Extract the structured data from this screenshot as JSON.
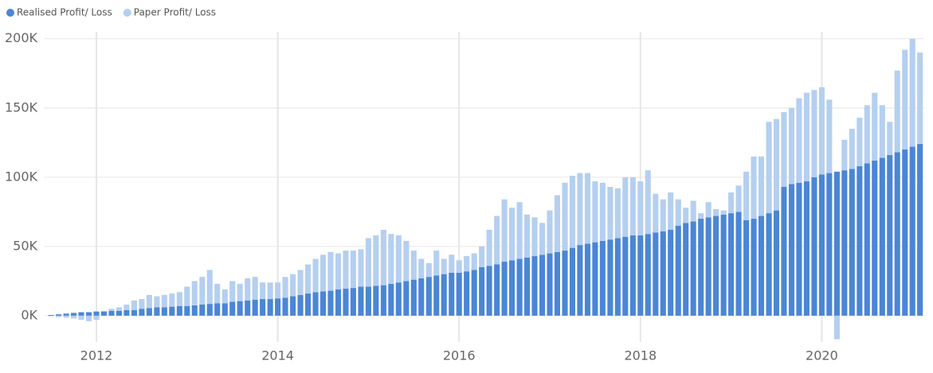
{
  "chart_data": {
    "type": "stacked_bar",
    "x": [
      2011.5,
      2011.583,
      2011.667,
      2011.75,
      2011.833,
      2011.917,
      2012,
      2012.083,
      2012.167,
      2012.25,
      2012.333,
      2012.417,
      2012.5,
      2012.583,
      2012.667,
      2012.75,
      2012.833,
      2012.917,
      2013,
      2013.083,
      2013.167,
      2013.25,
      2013.333,
      2013.417,
      2013.5,
      2013.583,
      2013.667,
      2013.75,
      2013.833,
      2013.917,
      2014,
      2014.083,
      2014.167,
      2014.25,
      2014.333,
      2014.417,
      2014.5,
      2014.583,
      2014.667,
      2014.75,
      2014.833,
      2014.917,
      2015,
      2015.083,
      2015.167,
      2015.25,
      2015.333,
      2015.417,
      2015.5,
      2015.583,
      2015.667,
      2015.75,
      2015.833,
      2015.917,
      2016,
      2016.083,
      2016.167,
      2016.25,
      2016.333,
      2016.417,
      2016.5,
      2016.583,
      2016.667,
      2016.75,
      2016.833,
      2016.917,
      2017,
      2017.083,
      2017.167,
      2017.25,
      2017.333,
      2017.417,
      2017.5,
      2017.583,
      2017.667,
      2017.75,
      2017.833,
      2017.917,
      2018,
      2018.083,
      2018.167,
      2018.25,
      2018.333,
      2018.417,
      2018.5,
      2018.583,
      2018.667,
      2018.75,
      2018.833,
      2018.917,
      2019,
      2019.083,
      2019.167,
      2019.25,
      2019.333,
      2019.417,
      2019.5,
      2019.583,
      2019.667,
      2019.75,
      2019.833,
      2019.917,
      2020,
      2020.083,
      2020.167,
      2020.25,
      2020.333,
      2020.417,
      2020.5,
      2020.583,
      2020.667,
      2020.75,
      2020.833,
      2020.917,
      2021,
      2021.083
    ],
    "series": [
      {
        "name": "Realised Profit/ Loss",
        "color": "#4a86d4",
        "values": [
          0.5,
          1,
          1.5,
          2,
          2.5,
          2.5,
          3,
          3,
          3.5,
          3.5,
          4,
          4,
          5,
          5.5,
          6,
          6,
          6.5,
          7,
          7,
          7.5,
          8,
          8.5,
          9,
          9,
          10,
          10.5,
          11,
          11.5,
          12,
          12,
          12.5,
          13,
          14,
          15,
          16,
          17,
          17.5,
          18,
          19,
          19.5,
          20,
          21,
          21,
          21.5,
          22,
          23,
          24,
          25,
          26,
          27,
          28,
          29,
          30,
          31,
          31,
          32,
          33,
          35,
          36,
          37,
          39,
          40,
          41,
          42,
          43,
          44,
          45,
          46,
          47,
          49,
          51,
          52,
          53,
          54,
          55,
          56,
          57,
          58,
          58,
          59,
          60,
          61,
          62,
          65,
          67,
          68,
          70,
          71,
          72,
          73,
          74,
          75,
          69,
          70,
          72,
          74,
          76,
          93,
          95,
          96,
          97,
          100,
          102,
          103,
          104,
          105,
          106,
          108,
          110,
          112,
          114,
          116,
          118,
          120,
          122,
          124
        ]
      },
      {
        "name": "Paper Profit/ Loss",
        "color": "#b5cff0",
        "values": [
          -0.5,
          -1,
          -1.5,
          -2,
          -3,
          -4,
          -3,
          0.5,
          1.5,
          2.5,
          4,
          7,
          7,
          9.5,
          8,
          9,
          9.5,
          10,
          14,
          17.5,
          20,
          24.5,
          14,
          10,
          15,
          12.5,
          16,
          16.5,
          12,
          12,
          11.5,
          15,
          16,
          18,
          21,
          24,
          26.5,
          28,
          26,
          27.5,
          27,
          27,
          35,
          36.5,
          40,
          36,
          34,
          29,
          21,
          14,
          10,
          18,
          11,
          13,
          9,
          11,
          12,
          15,
          26,
          35,
          45,
          38,
          41,
          31,
          28,
          23,
          31,
          41,
          49,
          52,
          52,
          51,
          44,
          42,
          38,
          36,
          43,
          42,
          39,
          46,
          28,
          23,
          27,
          19,
          11,
          15,
          4,
          11,
          5,
          3,
          15,
          19,
          35,
          45,
          43,
          66,
          66,
          54,
          55,
          61,
          64,
          63,
          63,
          53,
          -17,
          22,
          29,
          35,
          42,
          49,
          38,
          24,
          59,
          72,
          78,
          66
        ]
      }
    ],
    "xlim": [
      2011.42,
      2021.13
    ],
    "xticks": [
      2012,
      2014,
      2016,
      2018,
      2020
    ],
    "ylim": [
      -19,
      205
    ],
    "yticks": [
      {
        "value": 0,
        "label": "0K"
      },
      {
        "value": 50,
        "label": "50K"
      },
      {
        "value": 100,
        "label": "100K"
      },
      {
        "value": 150,
        "label": "150K"
      },
      {
        "value": 200,
        "label": "200K"
      }
    ],
    "grid": true,
    "legend": "top-left"
  }
}
